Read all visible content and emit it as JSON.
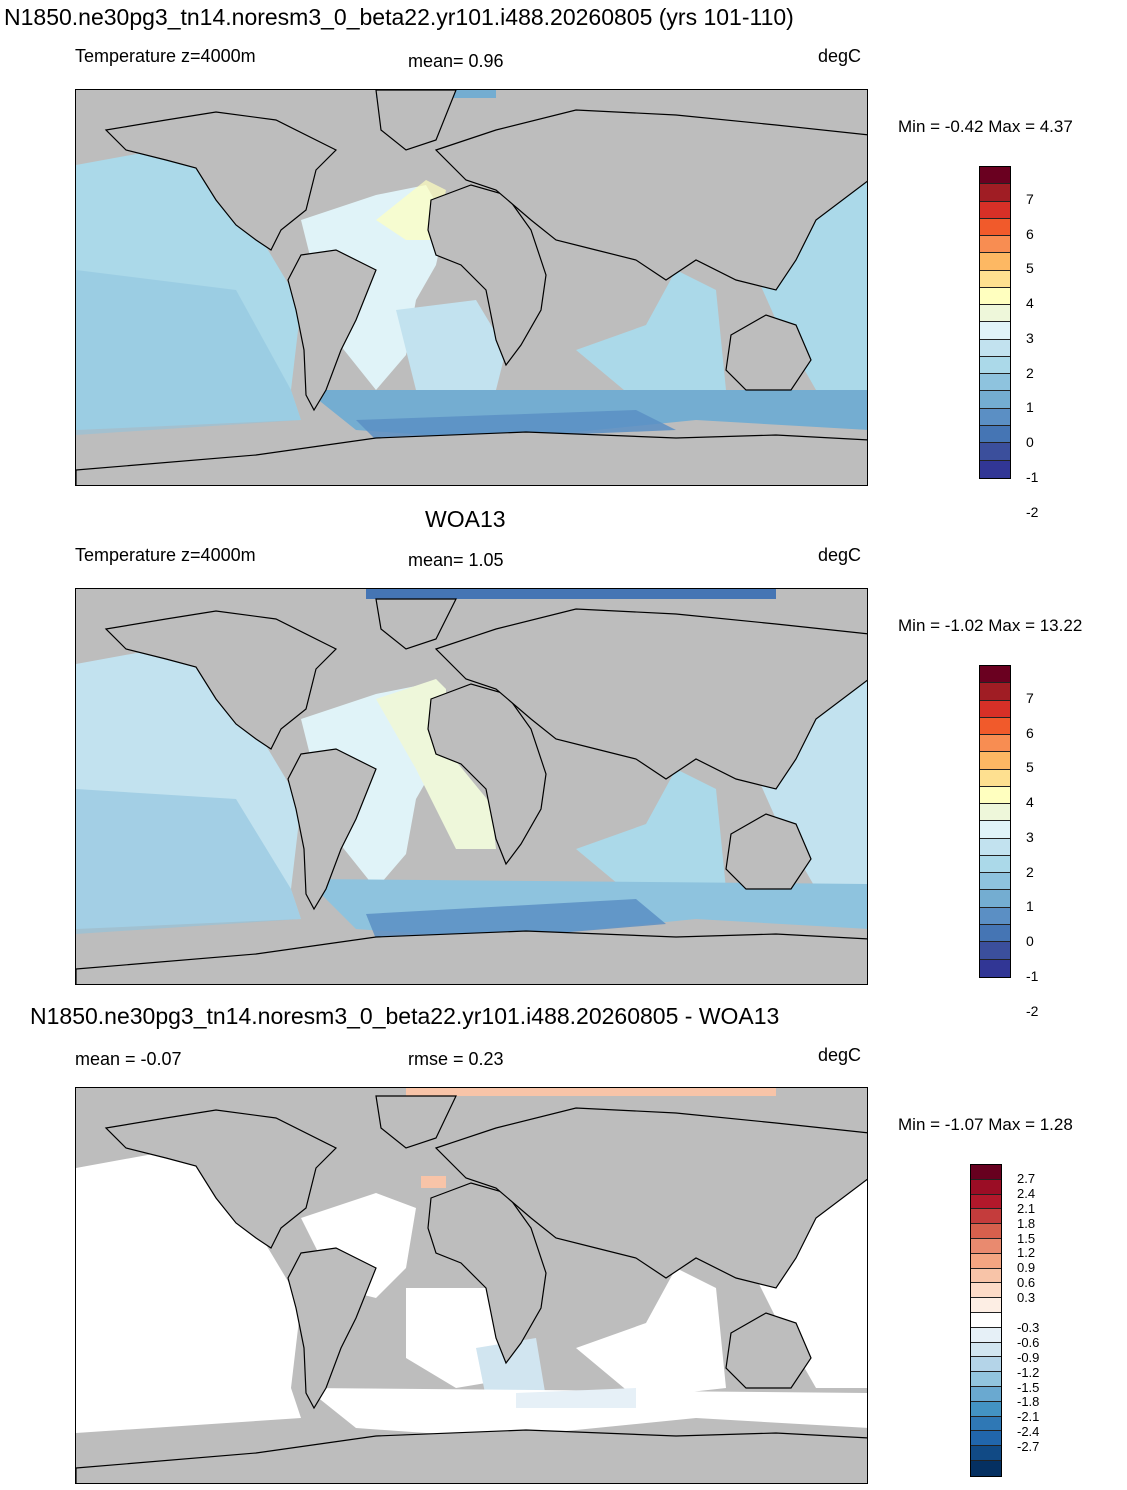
{
  "panels": [
    {
      "title": "N1850.ne30pg3_tn14.noresm3_0_beta22.yr101.i488.20260805 (yrs 101-110)",
      "left_label": "Temperature z=4000m",
      "center_label": "mean=   0.96",
      "units": "degC",
      "minmax": "Min =  -0.42 Max =   4.37",
      "legend_labels": [
        "7",
        "6",
        "5",
        "4",
        "3",
        "2",
        "1",
        "0",
        "-1",
        "-2"
      ]
    },
    {
      "title": "WOA13",
      "left_label": "Temperature z=4000m",
      "center_label": "mean=   1.05",
      "units": "degC",
      "minmax": "Min =  -1.02 Max =  13.22",
      "legend_labels": [
        "7",
        "6",
        "5",
        "4",
        "3",
        "2",
        "1",
        "0",
        "-1",
        "-2"
      ]
    },
    {
      "title": "N1850.ne30pg3_tn14.noresm3_0_beta22.yr101.i488.20260805 - WOA13",
      "left_label": "mean =  -0.07",
      "center_label": "rmse =   0.23",
      "units": "degC",
      "minmax": "Min =  -1.07 Max =   1.28",
      "legend_labels": [
        "2.7",
        "2.4",
        "2.1",
        "1.8",
        "1.5",
        "1.2",
        "0.9",
        "0.6",
        "0.3",
        "-0.3",
        "-0.6",
        "-0.9",
        "-1.2",
        "-1.5",
        "-1.8",
        "-2.1",
        "-2.4",
        "-2.7"
      ]
    }
  ],
  "colors": {
    "land": "#bdbdbd",
    "temp_scale": [
      "#6a0020",
      "#a01d24",
      "#d73027",
      "#f15a2b",
      "#f88d52",
      "#fdb863",
      "#fee090",
      "#ffffbf",
      "#eef7da",
      "#e0f3f8",
      "#c2e2ef",
      "#abd9e9",
      "#8ec3de",
      "#74add1",
      "#5b8fc4",
      "#4575b4",
      "#3b4f9c",
      "#313695"
    ],
    "diff_scale": [
      "#67001f",
      "#9b0d25",
      "#b2182b",
      "#c43c3c",
      "#d6604d",
      "#e98a6f",
      "#f4a582",
      "#f8c4a8",
      "#fddbc7",
      "#fdeee4",
      "#ffffff",
      "#e6f0f7",
      "#d1e5f0",
      "#b4d4e8",
      "#92c5de",
      "#6aa9d0",
      "#4393c3",
      "#2f78b5",
      "#2166ac",
      "#114a85",
      "#053061"
    ]
  }
}
